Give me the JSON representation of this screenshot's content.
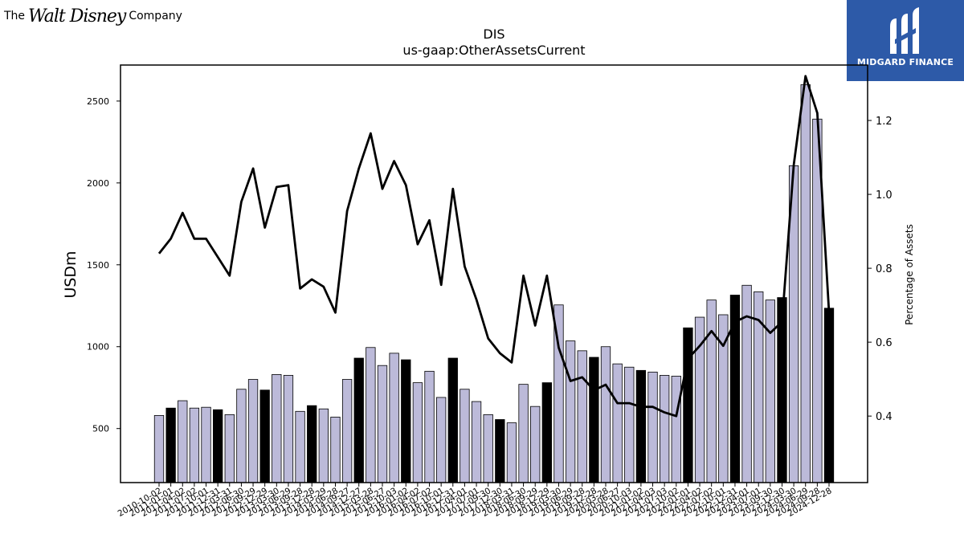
{
  "branding": {
    "left_logo": {
      "prefix": "The",
      "wordmark": "Walt Disney",
      "suffix": "Company"
    },
    "right_logo": {
      "name": "MIDGARD FINANCE",
      "icon": "midgard-m-logo-icon",
      "bg_color": "#2d5aa8"
    }
  },
  "chart_data": {
    "type": "bar",
    "title": "DIS",
    "subtitle": "us-gaap:OtherAssetsCurrent",
    "ylabel": "USDm",
    "y2label": "Percentage of Assets",
    "ylim": [
      170,
      2720
    ],
    "y2lim": [
      0.22,
      1.35
    ],
    "yticks": [
      500,
      1000,
      1500,
      2000,
      2500
    ],
    "y2ticks": [
      0.4,
      0.6,
      0.8,
      1.0,
      1.2
    ],
    "colors": {
      "bar_quarter": "#bcbad9",
      "bar_fiscal_year_end": "#000000",
      "line": "#000000"
    },
    "categories": [
      "2010-10-02",
      "2011-01-01",
      "2011-04-02",
      "2011-07-02",
      "2011-10-01",
      "2011-12-31",
      "2012-03-31",
      "2012-06-30",
      "2012-09-29",
      "2012-12-29",
      "2013-03-30",
      "2013-06-29",
      "2013-09-28",
      "2013-12-28",
      "2014-03-29",
      "2014-06-28",
      "2014-09-27",
      "2014-12-27",
      "2015-03-28",
      "2015-06-27",
      "2015-10-03",
      "2016-01-02",
      "2016-04-02",
      "2016-07-02",
      "2016-10-01",
      "2016-12-31",
      "2017-04-01",
      "2017-07-01",
      "2017-09-30",
      "2017-12-30",
      "2018-03-31",
      "2018-06-30",
      "2018-09-29",
      "2018-12-29",
      "2019-03-30",
      "2019-06-29",
      "2019-09-28",
      "2019-12-28",
      "2020-03-28",
      "2020-06-27",
      "2020-10-03",
      "2021-01-02",
      "2021-04-03",
      "2021-07-03",
      "2021-10-02",
      "2022-01-01",
      "2022-04-02",
      "2022-07-02",
      "2022-10-01",
      "2022-12-31",
      "2023-04-01",
      "2023-07-01",
      "2023-09-30",
      "2023-12-30",
      "2024-03-30",
      "2024-06-29",
      "2024-09-28",
      "2024-12-28"
    ],
    "series": [
      {
        "role": "bars",
        "axis": "left",
        "values": [
          580,
          625,
          670,
          625,
          630,
          615,
          585,
          740,
          800,
          735,
          830,
          825,
          605,
          640,
          620,
          570,
          800,
          930,
          995,
          885,
          960,
          920,
          780,
          850,
          690,
          930,
          740,
          665,
          585,
          555,
          535,
          770,
          635,
          780,
          1255,
          1035,
          975,
          935,
          1000,
          895,
          875,
          855,
          845,
          825,
          820,
          1115,
          1180,
          1285,
          1195,
          1315,
          1375,
          1335,
          1285,
          1300,
          2105,
          2600,
          2390,
          1235
        ],
        "fiscal_year_end": [
          false,
          true,
          false,
          false,
          false,
          true,
          false,
          false,
          false,
          true,
          false,
          false,
          false,
          true,
          false,
          false,
          false,
          true,
          false,
          false,
          false,
          true,
          false,
          false,
          false,
          true,
          false,
          false,
          false,
          true,
          false,
          false,
          false,
          true,
          false,
          false,
          false,
          true,
          false,
          false,
          false,
          true,
          false,
          false,
          false,
          true,
          false,
          false,
          false,
          true,
          false,
          false,
          false,
          true,
          false,
          false,
          false,
          true
        ]
      },
      {
        "role": "line",
        "axis": "right",
        "values": [
          0.84,
          0.88,
          0.95,
          0.88,
          0.88,
          0.83,
          0.78,
          0.98,
          1.07,
          0.91,
          1.02,
          1.025,
          0.745,
          0.77,
          0.75,
          0.68,
          0.955,
          1.07,
          1.165,
          1.015,
          1.09,
          1.025,
          0.865,
          0.93,
          0.755,
          1.015,
          0.805,
          0.715,
          0.61,
          0.57,
          0.545,
          0.78,
          0.645,
          0.78,
          0.585,
          0.495,
          0.505,
          0.47,
          0.485,
          0.435,
          0.435,
          0.425,
          0.425,
          0.41,
          0.4,
          0.555,
          0.59,
          0.63,
          0.59,
          0.655,
          0.67,
          0.66,
          0.625,
          0.655,
          1.08,
          1.32,
          1.22,
          0.68
        ]
      }
    ]
  }
}
